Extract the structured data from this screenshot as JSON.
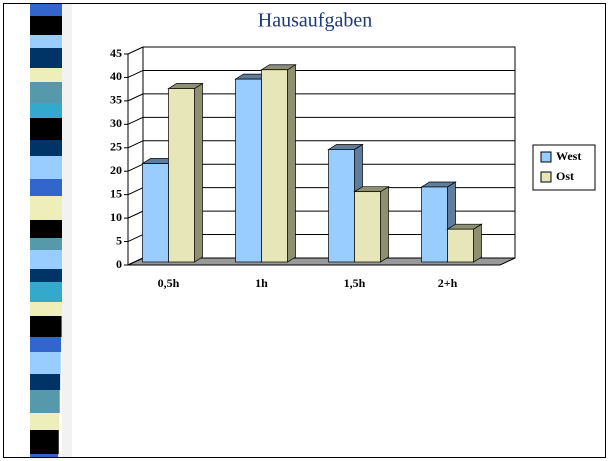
{
  "chart_data": {
    "type": "bar",
    "title": "Hausaufgaben",
    "categories": [
      "0,5h",
      "1h",
      "1,5h",
      "2+h"
    ],
    "series": [
      {
        "name": "West",
        "color": "#99ccff",
        "values": [
          21,
          39,
          24,
          16
        ]
      },
      {
        "name": "Ost",
        "color": "#e6e6b8",
        "values": [
          37,
          41,
          15,
          7
        ]
      }
    ],
    "ylim": [
      0,
      45
    ],
    "yticks": [
      0,
      5,
      10,
      15,
      20,
      25,
      30,
      35,
      40,
      45
    ],
    "grid": true,
    "legend": "right"
  }
}
